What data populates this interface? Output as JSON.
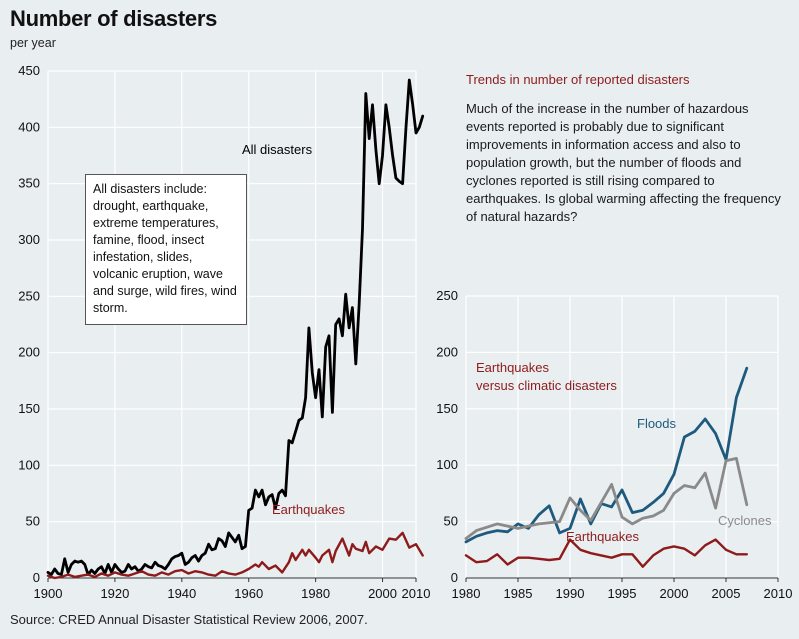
{
  "header": {
    "title": "Number of disasters",
    "subtitle": "per year"
  },
  "infobox": {
    "text": "All disasters include: drought, earthquake, extreme temperatures, famine, flood, insect infestation, slides, volcanic eruption, wave and surge, wild fires, wind storm."
  },
  "trends": {
    "title": "Trends in number of reported disasters",
    "text": "Much of the increase in the number of hazardous events reported is probably due to significant improvements in information access and also to population growth, but the number of floods and cyclones reported is still rising compared to earthquakes. Is global warming affecting the frequency of natural hazards?"
  },
  "source": "Source: CRED Annual Disaster Statistical Review 2006, 2007.",
  "colors": {
    "background": "#e9eef1",
    "grid": "#ffffff",
    "all_disasters": "#000000",
    "earthquakes": "#8e1b1b",
    "floods": "#1e5a7e",
    "cyclones": "#8a8a8a"
  },
  "chart_data": [
    {
      "type": "line",
      "xlim": [
        1900,
        2010
      ],
      "ylim": [
        0,
        450
      ],
      "xticks": [
        1900,
        1920,
        1940,
        1960,
        1980,
        2000,
        2010
      ],
      "yticks": [
        0,
        50,
        100,
        150,
        200,
        250,
        300,
        350,
        400,
        450
      ],
      "grid": true,
      "series": [
        {
          "name": "All disasters",
          "color": "#000000",
          "x": [
            1900,
            1901,
            1902,
            1903,
            1904,
            1905,
            1906,
            1907,
            1908,
            1909,
            1910,
            1911,
            1912,
            1913,
            1914,
            1915,
            1916,
            1917,
            1918,
            1919,
            1920,
            1921,
            1922,
            1923,
            1924,
            1925,
            1926,
            1927,
            1928,
            1929,
            1930,
            1931,
            1932,
            1933,
            1934,
            1935,
            1936,
            1937,
            1938,
            1939,
            1940,
            1941,
            1942,
            1943,
            1944,
            1945,
            1946,
            1947,
            1948,
            1949,
            1950,
            1951,
            1952,
            1953,
            1954,
            1955,
            1956,
            1957,
            1958,
            1959,
            1960,
            1961,
            1962,
            1963,
            1964,
            1965,
            1966,
            1967,
            1968,
            1969,
            1970,
            1971,
            1972,
            1973,
            1974,
            1975,
            1976,
            1977,
            1978,
            1979,
            1980,
            1981,
            1982,
            1983,
            1984,
            1985,
            1986,
            1987,
            1988,
            1989,
            1990,
            1991,
            1992,
            1993,
            1994,
            1995,
            1996,
            1997,
            1998,
            1999,
            2000,
            2001,
            2002,
            2003,
            2004,
            2005,
            2006,
            2007,
            2008,
            2009,
            2010,
            2011,
            2012
          ],
          "values": [
            5,
            3,
            8,
            4,
            3,
            17,
            5,
            12,
            15,
            14,
            15,
            12,
            3,
            7,
            4,
            8,
            10,
            4,
            12,
            5,
            12,
            8,
            5,
            6,
            12,
            8,
            10,
            6,
            8,
            12,
            10,
            9,
            14,
            11,
            10,
            8,
            12,
            17,
            19,
            20,
            22,
            12,
            14,
            18,
            20,
            15,
            20,
            22,
            30,
            25,
            26,
            35,
            33,
            28,
            40,
            36,
            32,
            38,
            26,
            28,
            60,
            62,
            78,
            72,
            78,
            65,
            72,
            74,
            62,
            75,
            78,
            73,
            122,
            120,
            130,
            140,
            142,
            160,
            222,
            182,
            160,
            185,
            143,
            205,
            215,
            147,
            225,
            230,
            215,
            252,
            222,
            240,
            190,
            242,
            310,
            430,
            390,
            420,
            380,
            350,
            375,
            420,
            400,
            375,
            355,
            352,
            350,
            400,
            442,
            420,
            395,
            400,
            410
          ]
        },
        {
          "name": "Earthquakes",
          "color": "#8e1b1b",
          "x": [
            1900,
            1902,
            1904,
            1906,
            1908,
            1910,
            1912,
            1914,
            1916,
            1918,
            1920,
            1922,
            1924,
            1926,
            1928,
            1930,
            1932,
            1934,
            1936,
            1938,
            1940,
            1942,
            1944,
            1946,
            1948,
            1950,
            1952,
            1954,
            1956,
            1958,
            1960,
            1962,
            1963,
            1964,
            1966,
            1968,
            1970,
            1972,
            1973,
            1974,
            1976,
            1977,
            1978,
            1980,
            1981,
            1982,
            1984,
            1985,
            1986,
            1988,
            1990,
            1991,
            1992,
            1994,
            1995,
            1996,
            1998,
            2000,
            2002,
            2004,
            2006,
            2008,
            2010,
            2012
          ],
          "values": [
            2,
            0,
            1,
            3,
            1,
            2,
            3,
            1,
            4,
            2,
            5,
            3,
            2,
            4,
            6,
            3,
            2,
            5,
            3,
            6,
            7,
            4,
            6,
            5,
            3,
            2,
            6,
            4,
            3,
            5,
            8,
            12,
            10,
            14,
            8,
            11,
            5,
            14,
            22,
            16,
            25,
            20,
            25,
            18,
            14,
            20,
            25,
            14,
            24,
            35,
            20,
            30,
            26,
            24,
            32,
            22,
            28,
            25,
            35,
            34,
            40,
            27,
            30,
            20
          ]
        }
      ]
    },
    {
      "type": "line",
      "title": "Earthquakes versus climatic disasters",
      "xlim": [
        1980,
        2010
      ],
      "ylim": [
        0,
        250
      ],
      "xticks": [
        1980,
        1985,
        1990,
        1995,
        2000,
        2005,
        2010
      ],
      "yticks": [
        0,
        50,
        100,
        150,
        200,
        250
      ],
      "grid": true,
      "series": [
        {
          "name": "Floods",
          "color": "#1e5a7e",
          "x": [
            1980,
            1981,
            1982,
            1983,
            1984,
            1985,
            1986,
            1987,
            1988,
            1989,
            1990,
            1991,
            1992,
            1993,
            1994,
            1995,
            1996,
            1997,
            1998,
            1999,
            2000,
            2001,
            2002,
            2003,
            2004,
            2005,
            2006,
            2007
          ],
          "values": [
            32,
            37,
            40,
            42,
            41,
            48,
            44,
            56,
            64,
            40,
            44,
            70,
            48,
            66,
            63,
            78,
            58,
            60,
            67,
            75,
            92,
            125,
            130,
            141,
            128,
            105,
            160,
            186
          ]
        },
        {
          "name": "Cyclones",
          "color": "#8a8a8a",
          "x": [
            1980,
            1981,
            1983,
            1985,
            1987,
            1989,
            1990,
            1991,
            1992,
            1994,
            1995,
            1996,
            1997,
            1998,
            1999,
            2000,
            2001,
            2002,
            2003,
            2004,
            2005,
            2006,
            2007
          ],
          "values": [
            35,
            42,
            48,
            44,
            48,
            50,
            71,
            60,
            51,
            83,
            54,
            48,
            53,
            55,
            60,
            75,
            82,
            80,
            93,
            62,
            104,
            106,
            65
          ]
        },
        {
          "name": "Earthquakes",
          "color": "#8e1b1b",
          "x": [
            1980,
            1981,
            1982,
            1983,
            1984,
            1985,
            1986,
            1987,
            1988,
            1989,
            1990,
            1991,
            1992,
            1993,
            1994,
            1995,
            1996,
            1997,
            1998,
            1999,
            2000,
            2001,
            2002,
            2003,
            2004,
            2005,
            2006,
            2007
          ],
          "values": [
            20,
            14,
            15,
            21,
            12,
            18,
            18,
            17,
            16,
            17,
            34,
            25,
            22,
            20,
            18,
            21,
            21,
            10,
            20,
            26,
            28,
            26,
            20,
            29,
            34,
            25,
            21,
            21
          ]
        }
      ]
    }
  ]
}
